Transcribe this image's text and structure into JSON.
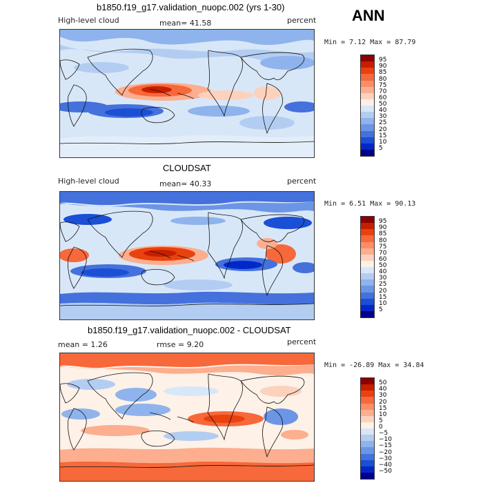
{
  "season": "ANN",
  "panels": [
    {
      "id": "model",
      "title": "b1850.f19_g17.validation_nuopc.002 (yrs 1-30)",
      "left_label": "High-level cloud",
      "center_label": "mean=  41.58",
      "right_label": "percent",
      "minmax": "Min =    7.12  Max =  87.79",
      "levels": [
        "95",
        "90",
        "85",
        "80",
        "75",
        "70",
        "60",
        "50",
        "40",
        "30",
        "25",
        "20",
        "15",
        "10",
        "5"
      ],
      "colors": [
        "#8b0000",
        "#c81e00",
        "#e8420e",
        "#f7683a",
        "#fb8e66",
        "#fcae8e",
        "#fcd2bd",
        "#fdf1e8",
        "#d8e7f8",
        "#b3cdf2",
        "#8fb3ec",
        "#6b95e5",
        "#4471dc",
        "#1a4fd6",
        "#0028c8",
        "#00008b"
      ]
    },
    {
      "id": "obs",
      "title": "CLOUDSAT",
      "left_label": "High-level cloud",
      "center_label": "mean=  40.33",
      "right_label": "percent",
      "minmax": "Min =    6.51  Max =  90.13",
      "levels": [
        "95",
        "90",
        "85",
        "80",
        "75",
        "70",
        "60",
        "50",
        "40",
        "30",
        "25",
        "20",
        "15",
        "10",
        "5"
      ],
      "colors": [
        "#8b0000",
        "#c81e00",
        "#e8420e",
        "#f7683a",
        "#fb8e66",
        "#fcae8e",
        "#fcd2bd",
        "#fdf1e8",
        "#d8e7f8",
        "#b3cdf2",
        "#8fb3ec",
        "#6b95e5",
        "#4471dc",
        "#1a4fd6",
        "#0028c8",
        "#00008b"
      ]
    },
    {
      "id": "diff",
      "title": "b1850.f19_g17.validation_nuopc.002 - CLOUDSAT",
      "left_label": "mean =   1.26",
      "center_label": "rmse =   9.20",
      "right_label": "percent",
      "minmax": "Min = -26.89  Max =  34.84",
      "levels": [
        "50",
        "40",
        "30",
        "20",
        "15",
        "10",
        "5",
        "0",
        "−5",
        "−10",
        "−15",
        "−20",
        "−30",
        "−40",
        "−50"
      ],
      "colors": [
        "#8b0000",
        "#c81e00",
        "#e8420e",
        "#f7683a",
        "#fb8e66",
        "#fcae8e",
        "#fcd2bd",
        "#fdf1e8",
        "#d8e7f8",
        "#b3cdf2",
        "#8fb3ec",
        "#6b95e5",
        "#4471dc",
        "#1a4fd6",
        "#0028c8",
        "#00008b"
      ]
    }
  ]
}
